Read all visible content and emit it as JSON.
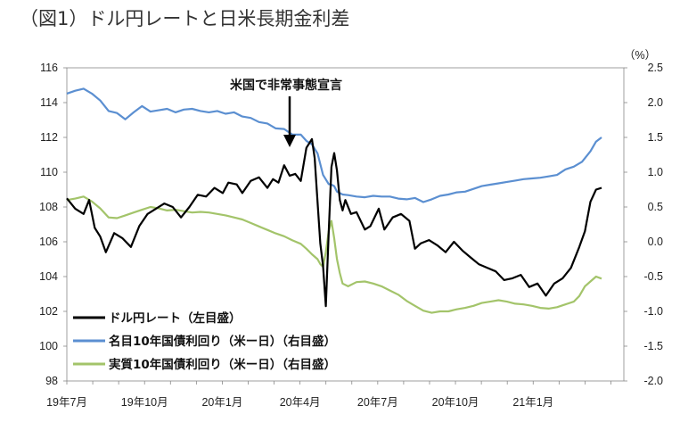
{
  "chart_data": {
    "type": "line",
    "title": "（図1）ドル円レートと日米長期金利差",
    "y2_unit": "（%）",
    "annotation": "米国で非常事態宣言",
    "left_axis": {
      "ylim": [
        98,
        116
      ],
      "ticks": [
        "116",
        "114",
        "112",
        "110",
        "108",
        "106",
        "104",
        "102",
        "100",
        "98"
      ]
    },
    "right_axis": {
      "ylim": [
        -2.0,
        2.5
      ],
      "ticks": [
        "2.5",
        "2.0",
        "1.5",
        "1.0",
        "0.5",
        "0.0",
        "-0.5",
        "-1.0",
        "-1.5",
        "-2.0"
      ]
    },
    "x_ticks": [
      "19年7月",
      "19年10月",
      "20年1月",
      "20年4月",
      "20年7月",
      "20年10月",
      "21年1月"
    ],
    "series": [
      {
        "name": "ドル円レート（左目盛）",
        "axis": "left",
        "color": "#000000",
        "points": [
          [
            0,
            108.5
          ],
          [
            3,
            107.9
          ],
          [
            6,
            107.6
          ],
          [
            8,
            108.4
          ],
          [
            10,
            106.8
          ],
          [
            12,
            106.3
          ],
          [
            14,
            105.4
          ],
          [
            17,
            106.5
          ],
          [
            20,
            106.2
          ],
          [
            23,
            105.7
          ],
          [
            26,
            106.9
          ],
          [
            29,
            107.6
          ],
          [
            32,
            107.9
          ],
          [
            35,
            108.2
          ],
          [
            38,
            108.0
          ],
          [
            41,
            107.4
          ],
          [
            44,
            108.0
          ],
          [
            47,
            108.7
          ],
          [
            50,
            108.6
          ],
          [
            53,
            109.1
          ],
          [
            56,
            108.8
          ],
          [
            58,
            109.4
          ],
          [
            61,
            109.3
          ],
          [
            63,
            108.8
          ],
          [
            66,
            109.5
          ],
          [
            69,
            109.7
          ],
          [
            72,
            109.1
          ],
          [
            74,
            109.6
          ],
          [
            76,
            109.4
          ],
          [
            78,
            110.4
          ],
          [
            80,
            109.8
          ],
          [
            82,
            109.9
          ],
          [
            84,
            109.5
          ],
          [
            86,
            111.4
          ],
          [
            88,
            111.9
          ],
          [
            89,
            110.8
          ],
          [
            90,
            108.3
          ],
          [
            91,
            105.9
          ],
          [
            92,
            104.6
          ],
          [
            93,
            102.3
          ],
          [
            94,
            106.5
          ],
          [
            95,
            110.3
          ],
          [
            96,
            111.1
          ],
          [
            97,
            110.1
          ],
          [
            98,
            108.4
          ],
          [
            99,
            107.8
          ],
          [
            100,
            108.4
          ],
          [
            102,
            107.6
          ],
          [
            104,
            107.7
          ],
          [
            107,
            106.7
          ],
          [
            109,
            106.9
          ],
          [
            112,
            107.9
          ],
          [
            114,
            106.7
          ],
          [
            117,
            107.4
          ],
          [
            120,
            107.6
          ],
          [
            123,
            107.2
          ],
          [
            125,
            105.6
          ],
          [
            127,
            105.9
          ],
          [
            130,
            106.1
          ],
          [
            133,
            105.8
          ],
          [
            136,
            105.4
          ],
          [
            139,
            106.0
          ],
          [
            142,
            105.5
          ],
          [
            145,
            105.1
          ],
          [
            148,
            104.7
          ],
          [
            151,
            104.5
          ],
          [
            154,
            104.3
          ],
          [
            157,
            103.8
          ],
          [
            160,
            103.9
          ],
          [
            163,
            104.1
          ],
          [
            166,
            103.4
          ],
          [
            169,
            103.6
          ],
          [
            172,
            102.9
          ],
          [
            175,
            103.6
          ],
          [
            178,
            103.9
          ],
          [
            181,
            104.5
          ],
          [
            184,
            105.7
          ],
          [
            186,
            106.6
          ],
          [
            188,
            108.3
          ],
          [
            190,
            109.0
          ],
          [
            192,
            109.1
          ]
        ]
      },
      {
        "name": "名目10年国債利回り（米ー日）（右目盛）",
        "axis": "right",
        "color": "#5b8fd1",
        "points": [
          [
            0,
            2.13
          ],
          [
            3,
            2.17
          ],
          [
            6,
            2.2
          ],
          [
            9,
            2.13
          ],
          [
            12,
            2.03
          ],
          [
            15,
            1.88
          ],
          [
            18,
            1.85
          ],
          [
            21,
            1.76
          ],
          [
            24,
            1.86
          ],
          [
            27,
            1.95
          ],
          [
            30,
            1.87
          ],
          [
            33,
            1.89
          ],
          [
            36,
            1.91
          ],
          [
            39,
            1.86
          ],
          [
            42,
            1.9
          ],
          [
            45,
            1.91
          ],
          [
            48,
            1.88
          ],
          [
            51,
            1.86
          ],
          [
            54,
            1.88
          ],
          [
            57,
            1.84
          ],
          [
            60,
            1.86
          ],
          [
            63,
            1.8
          ],
          [
            66,
            1.78
          ],
          [
            69,
            1.72
          ],
          [
            72,
            1.7
          ],
          [
            75,
            1.63
          ],
          [
            78,
            1.62
          ],
          [
            81,
            1.54
          ],
          [
            84,
            1.54
          ],
          [
            86,
            1.45
          ],
          [
            88,
            1.4
          ],
          [
            90,
            1.27
          ],
          [
            92,
            0.96
          ],
          [
            94,
            0.83
          ],
          [
            95,
            0.82
          ],
          [
            96,
            0.8
          ],
          [
            97,
            0.72
          ],
          [
            99,
            0.68
          ],
          [
            101,
            0.67
          ],
          [
            104,
            0.65
          ],
          [
            107,
            0.64
          ],
          [
            110,
            0.66
          ],
          [
            113,
            0.65
          ],
          [
            116,
            0.65
          ],
          [
            119,
            0.62
          ],
          [
            122,
            0.61
          ],
          [
            125,
            0.63
          ],
          [
            128,
            0.57
          ],
          [
            131,
            0.61
          ],
          [
            134,
            0.66
          ],
          [
            137,
            0.68
          ],
          [
            140,
            0.71
          ],
          [
            143,
            0.72
          ],
          [
            146,
            0.76
          ],
          [
            149,
            0.8
          ],
          [
            152,
            0.82
          ],
          [
            155,
            0.84
          ],
          [
            158,
            0.86
          ],
          [
            161,
            0.88
          ],
          [
            164,
            0.9
          ],
          [
            167,
            0.91
          ],
          [
            170,
            0.92
          ],
          [
            173,
            0.94
          ],
          [
            176,
            0.96
          ],
          [
            179,
            1.04
          ],
          [
            182,
            1.08
          ],
          [
            185,
            1.15
          ],
          [
            188,
            1.3
          ],
          [
            190,
            1.44
          ],
          [
            192,
            1.5
          ]
        ]
      },
      {
        "name": "実質10年国債利回り（米ー日）（右目盛）",
        "axis": "right",
        "color": "#a3c46a",
        "points": [
          [
            0,
            0.6
          ],
          [
            3,
            0.62
          ],
          [
            6,
            0.65
          ],
          [
            9,
            0.58
          ],
          [
            12,
            0.48
          ],
          [
            15,
            0.35
          ],
          [
            18,
            0.34
          ],
          [
            21,
            0.38
          ],
          [
            24,
            0.42
          ],
          [
            27,
            0.46
          ],
          [
            30,
            0.5
          ],
          [
            33,
            0.48
          ],
          [
            36,
            0.45
          ],
          [
            39,
            0.46
          ],
          [
            42,
            0.44
          ],
          [
            45,
            0.42
          ],
          [
            48,
            0.43
          ],
          [
            51,
            0.42
          ],
          [
            54,
            0.4
          ],
          [
            57,
            0.38
          ],
          [
            60,
            0.35
          ],
          [
            63,
            0.32
          ],
          [
            66,
            0.27
          ],
          [
            69,
            0.22
          ],
          [
            72,
            0.17
          ],
          [
            75,
            0.12
          ],
          [
            78,
            0.08
          ],
          [
            81,
            0.02
          ],
          [
            84,
            -0.03
          ],
          [
            86,
            -0.1
          ],
          [
            88,
            -0.18
          ],
          [
            90,
            -0.25
          ],
          [
            91,
            -0.32
          ],
          [
            92,
            -0.36
          ],
          [
            93,
            -0.15
          ],
          [
            94,
            0.15
          ],
          [
            95,
            0.3
          ],
          [
            96,
            0.05
          ],
          [
            97,
            -0.25
          ],
          [
            98,
            -0.45
          ],
          [
            99,
            -0.6
          ],
          [
            101,
            -0.64
          ],
          [
            104,
            -0.58
          ],
          [
            107,
            -0.57
          ],
          [
            110,
            -0.6
          ],
          [
            113,
            -0.64
          ],
          [
            116,
            -0.7
          ],
          [
            119,
            -0.76
          ],
          [
            122,
            -0.85
          ],
          [
            125,
            -0.92
          ],
          [
            128,
            -0.99
          ],
          [
            131,
            -1.02
          ],
          [
            134,
            -1.0
          ],
          [
            137,
            -1.0
          ],
          [
            140,
            -0.97
          ],
          [
            143,
            -0.95
          ],
          [
            146,
            -0.92
          ],
          [
            149,
            -0.88
          ],
          [
            152,
            -0.86
          ],
          [
            155,
            -0.84
          ],
          [
            158,
            -0.86
          ],
          [
            161,
            -0.89
          ],
          [
            164,
            -0.9
          ],
          [
            167,
            -0.92
          ],
          [
            170,
            -0.95
          ],
          [
            173,
            -0.96
          ],
          [
            176,
            -0.94
          ],
          [
            179,
            -0.9
          ],
          [
            182,
            -0.86
          ],
          [
            184,
            -0.78
          ],
          [
            186,
            -0.64
          ],
          [
            188,
            -0.57
          ],
          [
            190,
            -0.5
          ],
          [
            192,
            -0.53
          ]
        ]
      }
    ]
  }
}
